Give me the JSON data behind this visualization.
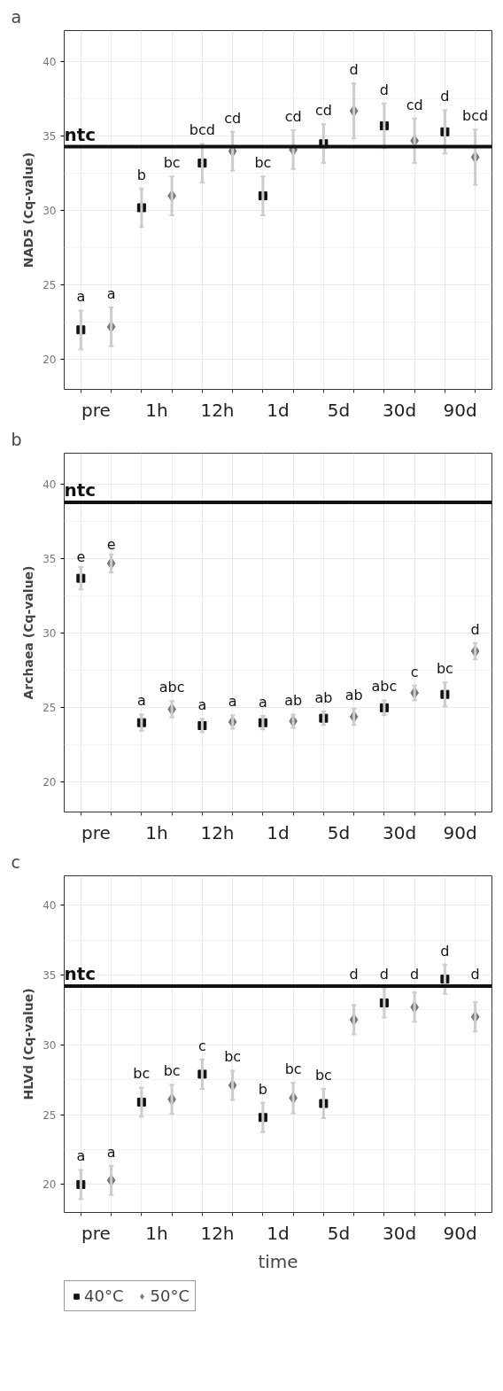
{
  "chart_data": [
    {
      "type": "scatter",
      "title": "a",
      "ylabel": "NAD5 (Cq-value)",
      "categories": [
        "pre",
        "1h",
        "12h",
        "1d",
        "5d",
        "30d",
        "90d"
      ],
      "series": [
        {
          "color": "#111111",
          "marker": "square",
          "values": [
            22.0,
            30.2,
            33.2,
            31.0,
            34.5,
            35.7,
            35.3
          ],
          "errors": [
            1.3,
            1.3,
            1.3,
            1.3,
            1.3,
            1.5,
            1.45
          ],
          "value_labels": [
            "a",
            "b",
            "bcd",
            "bc",
            "cd",
            "d",
            "d"
          ]
        },
        {
          "color": "#777777",
          "marker": "diamond",
          "values": [
            22.2,
            31.0,
            34.0,
            34.1,
            36.7,
            34.7,
            33.6
          ],
          "errors": [
            1.3,
            1.3,
            1.3,
            1.3,
            1.85,
            1.5,
            1.85
          ],
          "value_labels": [
            "a",
            "bc",
            "cd",
            "cd",
            "d",
            "cd",
            "bcd"
          ]
        }
      ],
      "ylim": [
        18,
        42.1
      ],
      "yticks": [
        20,
        25,
        30,
        35,
        40
      ],
      "grid": true,
      "ref_lines": [
        {
          "axis": "y",
          "value": 34.3,
          "label": "ntc",
          "color": "#111111"
        }
      ]
    },
    {
      "type": "scatter",
      "title": "b",
      "ylabel": "Archaea (Cq-value)",
      "categories": [
        "pre",
        "1h",
        "12h",
        "1d",
        "5d",
        "30d",
        "90d"
      ],
      "series": [
        {
          "color": "#111111",
          "marker": "square",
          "values": [
            33.7,
            24.0,
            23.8,
            24.0,
            24.3,
            25.0,
            25.9
          ],
          "errors": [
            0.75,
            0.55,
            0.45,
            0.45,
            0.45,
            0.5,
            0.8
          ],
          "value_labels": [
            "e",
            "a",
            "a",
            "a",
            "ab",
            "abc",
            "bc"
          ]
        },
        {
          "color": "#777777",
          "marker": "diamond",
          "values": [
            34.7,
            24.9,
            24.05,
            24.1,
            24.4,
            26.0,
            28.8
          ],
          "errors": [
            0.6,
            0.55,
            0.45,
            0.45,
            0.55,
            0.5,
            0.55
          ],
          "value_labels": [
            "e",
            "abc",
            "a",
            "ab",
            "ab",
            "c",
            "d"
          ]
        }
      ],
      "ylim": [
        18,
        42.1
      ],
      "yticks": [
        20,
        25,
        30,
        35,
        40
      ],
      "grid": true,
      "ref_lines": [
        {
          "axis": "y",
          "value": 38.8,
          "label": "ntc",
          "color": "#111111"
        }
      ]
    },
    {
      "type": "scatter",
      "title": "c",
      "ylabel": "HLVd (Cq-value)",
      "xlabel": "time",
      "categories": [
        "pre",
        "1h",
        "12h",
        "1d",
        "5d",
        "30d",
        "90d"
      ],
      "series": [
        {
          "name": "40°C",
          "color": "#111111",
          "marker": "square",
          "values": [
            20.0,
            25.9,
            27.9,
            24.8,
            25.8,
            33.0,
            34.7
          ],
          "errors": [
            1.05,
            1.05,
            1.05,
            1.05,
            1.05,
            1.05,
            1.05
          ],
          "value_labels": [
            "a",
            "bc",
            "c",
            "b",
            "bc",
            "d",
            "d"
          ]
        },
        {
          "name": "50°C",
          "color": "#777777",
          "marker": "diamond",
          "values": [
            20.3,
            26.1,
            27.1,
            26.2,
            31.8,
            32.7,
            32.0
          ],
          "errors": [
            1.05,
            1.05,
            1.05,
            1.1,
            1.05,
            1.05,
            1.05
          ],
          "value_labels": [
            "a",
            "bc",
            "bc",
            "bc",
            "d",
            "d",
            "d"
          ]
        }
      ],
      "ylim": [
        18,
        42.1
      ],
      "yticks": [
        20,
        25,
        30,
        35,
        40
      ],
      "grid": true,
      "legend": "bottom",
      "ref_lines": [
        {
          "axis": "y",
          "value": 34.2,
          "label": "ntc",
          "color": "#111111"
        }
      ]
    }
  ]
}
